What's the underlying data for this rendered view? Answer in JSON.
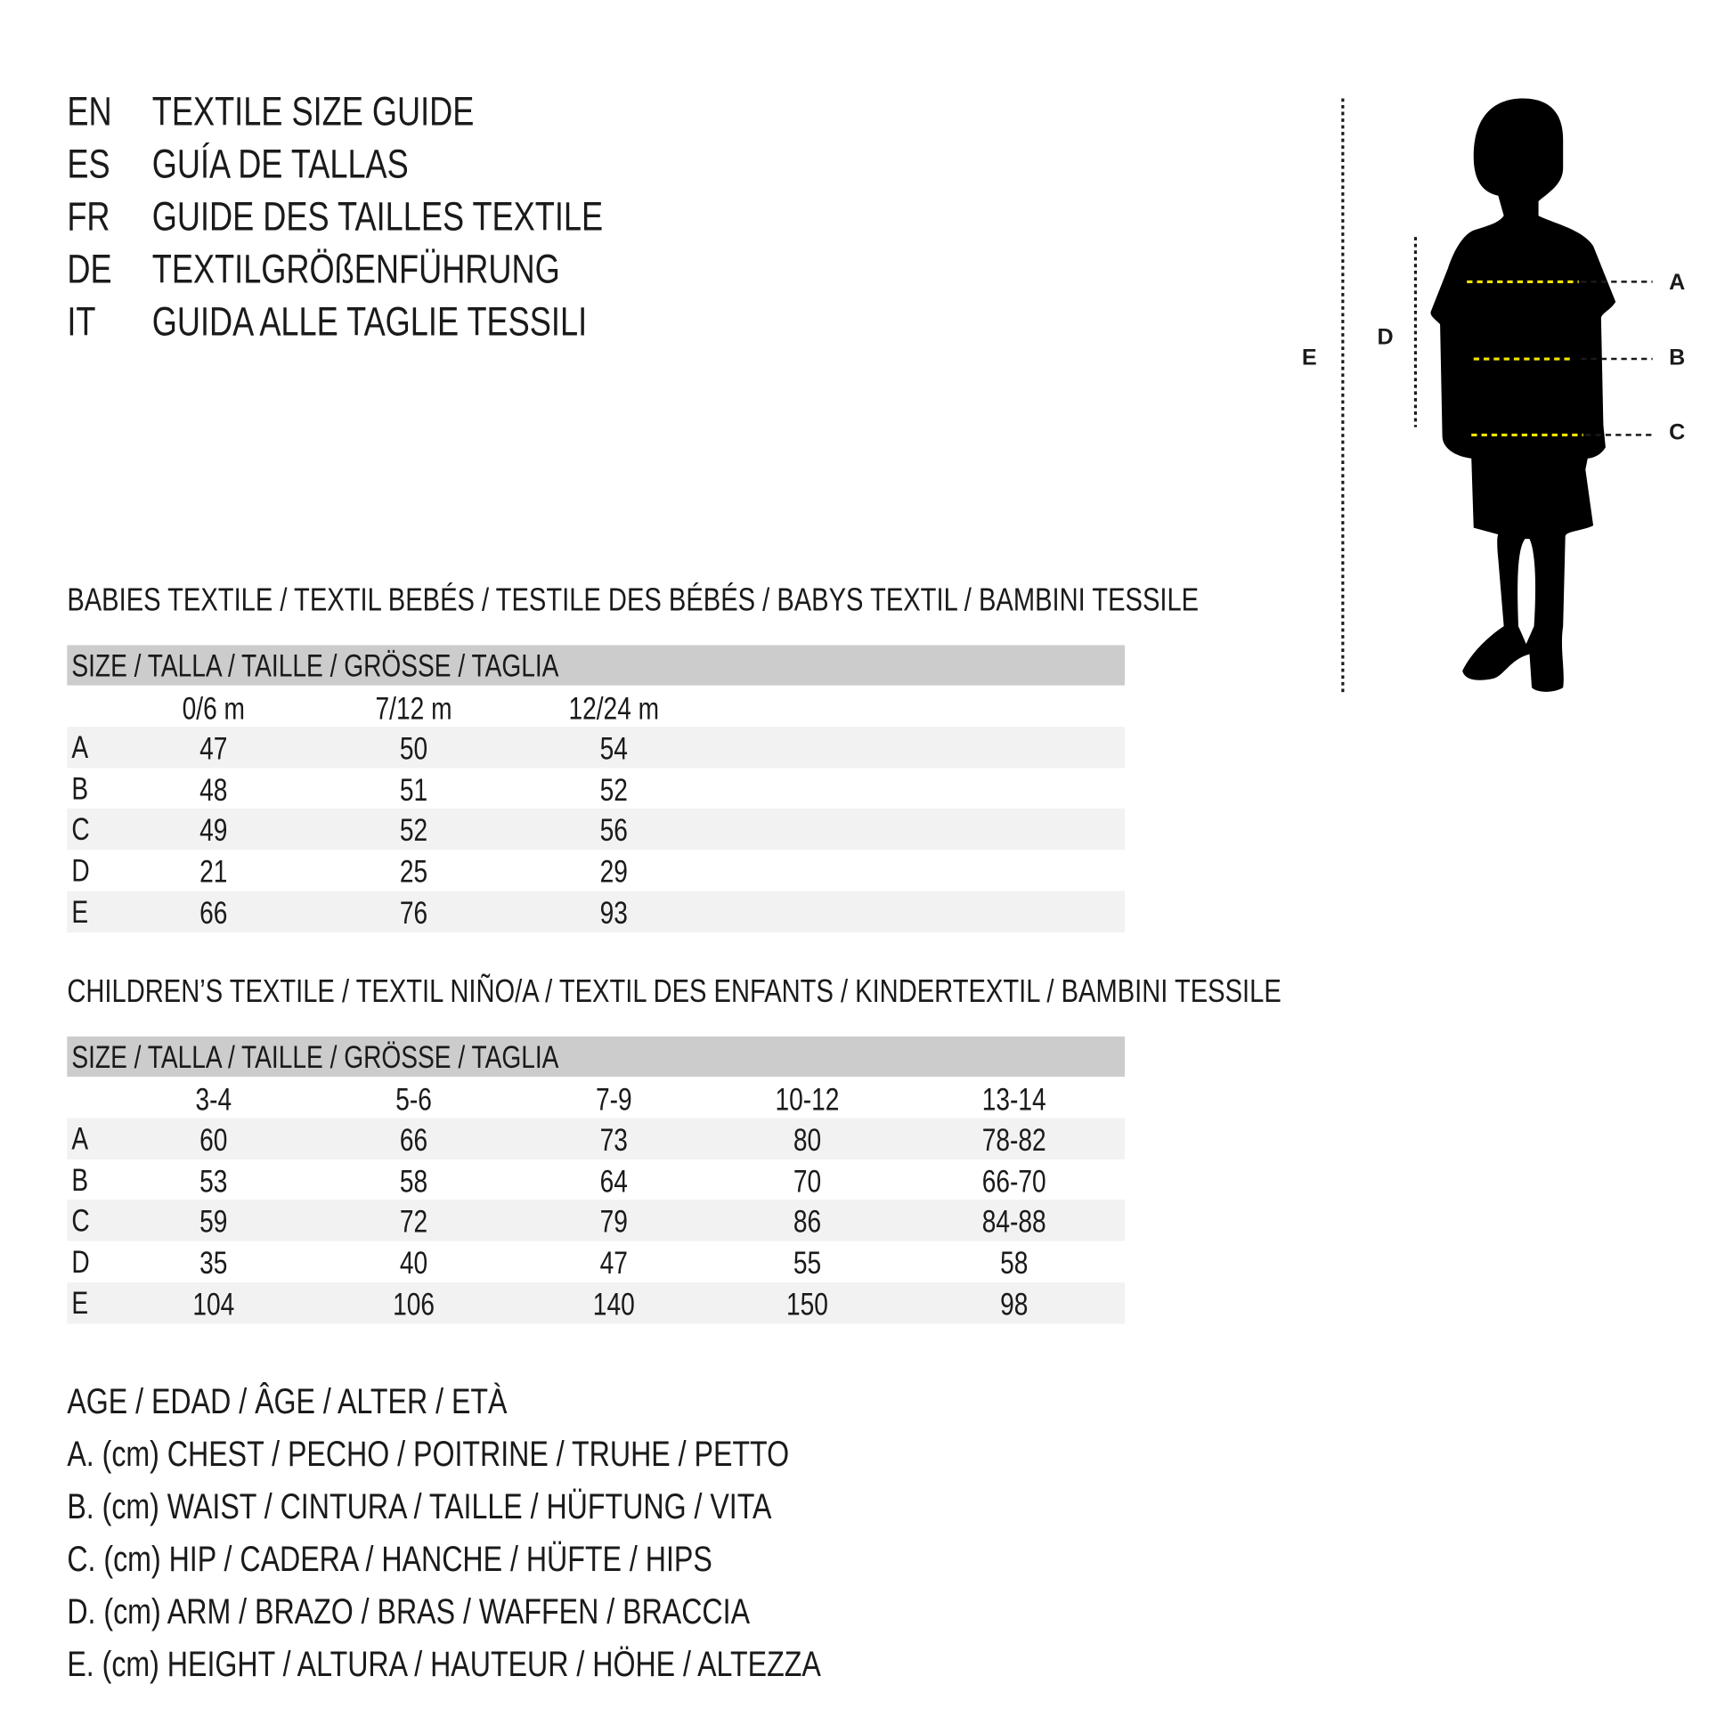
{
  "titles": [
    {
      "code": "EN",
      "text": "TEXTILE SIZE GUIDE"
    },
    {
      "code": "ES",
      "text": "GUÍA DE TALLAS"
    },
    {
      "code": "FR",
      "text": "GUIDE DES TAILLES TEXTILE"
    },
    {
      "code": "DE",
      "text": "TEXTILGRÖßENFÜHRUNG"
    },
    {
      "code": "IT",
      "text": "GUIDA ALLE TAGLIE TESSILI"
    }
  ],
  "figure": {
    "labels": {
      "a": "A",
      "b": "B",
      "c": "C",
      "d": "D",
      "e": "E"
    },
    "measure_line_color": "#f5e400"
  },
  "colors": {
    "header_bar": "#cccccc",
    "row_shade": "#f2f2f2",
    "text": "#1a1a1a"
  },
  "babies": {
    "title": "BABIES TEXTILE / TEXTIL BEBÉS / TESTILE DES BÉBÉS / BABYS TEXTIL / BAMBINI TESSILE",
    "header": "SIZE / TALLA / TAILLE / GRÖSSE / TAGLIA",
    "columns": [
      "0/6 m",
      "7/12 m",
      "12/24 m"
    ],
    "rows": [
      {
        "label": "A",
        "values": [
          "47",
          "50",
          "54"
        ]
      },
      {
        "label": "B",
        "values": [
          "48",
          "51",
          "52"
        ]
      },
      {
        "label": "C",
        "values": [
          "49",
          "52",
          "56"
        ]
      },
      {
        "label": "D",
        "values": [
          "21",
          "25",
          "29"
        ]
      },
      {
        "label": "E",
        "values": [
          "66",
          "76",
          "93"
        ]
      }
    ]
  },
  "children": {
    "title": "CHILDREN’S TEXTILE / TEXTIL NIÑO/A / TEXTIL DES ENFANTS / KINDERTEXTIL / BAMBINI TESSILE",
    "header": "SIZE / TALLA / TAILLE / GRÖSSE / TAGLIA",
    "columns": [
      "3-4",
      "5-6",
      "7-9",
      "10-12",
      "13-14"
    ],
    "rows": [
      {
        "label": "A",
        "values": [
          "60",
          "66",
          "73",
          "80",
          "78-82"
        ]
      },
      {
        "label": "B",
        "values": [
          "53",
          "58",
          "64",
          "70",
          "66-70"
        ]
      },
      {
        "label": "C",
        "values": [
          "59",
          "72",
          "79",
          "86",
          "84-88"
        ]
      },
      {
        "label": "D",
        "values": [
          "35",
          "40",
          "47",
          "55",
          "58"
        ]
      },
      {
        "label": "E",
        "values": [
          "104",
          "106",
          "140",
          "150",
          "98"
        ]
      }
    ]
  },
  "legend": [
    "AGE / EDAD / ÂGE / ALTER / ETÀ",
    "A. (cm) CHEST / PECHO / POITRINE / TRUHE / PETTO",
    "B. (cm) WAIST / CINTURA / TAILLE / HÜFTUNG / VITA",
    "C. (cm) HIP / CADERA / HANCHE / HÜFTE / HIPS",
    "D. (cm) ARM / BRAZO / BRAS / WAFFEN / BRACCIA",
    "E. (cm) HEIGHT / ALTURA / HAUTEUR / HÖHE / ALTEZZA"
  ]
}
